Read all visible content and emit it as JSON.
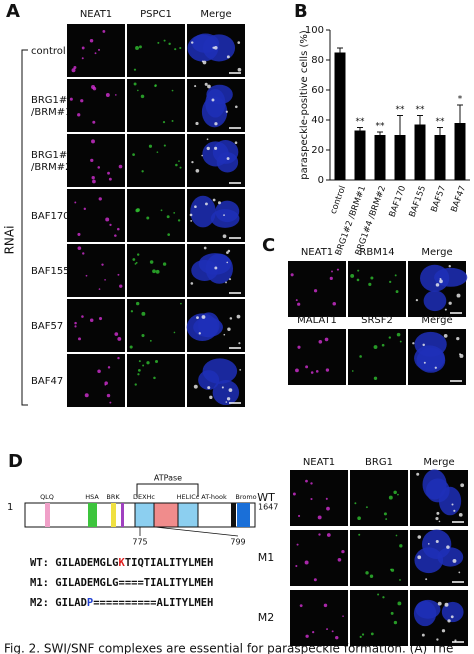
{
  "panel_a": {
    "label": "A",
    "side_label": "RNAi",
    "columns": [
      {
        "text": "NEAT1",
        "color": "#d22fd2"
      },
      {
        "text": "PSPC1",
        "color": "#1f9e1f"
      },
      {
        "text": "Merge",
        "color": "#111111"
      }
    ],
    "rows": [
      [
        "control"
      ],
      [
        "BRG1#2",
        "/BRM#1"
      ],
      [
        "BRG1#4",
        "/BRM#2"
      ],
      [
        "BAF170"
      ],
      [
        "BAF155"
      ],
      [
        "BAF57"
      ],
      [
        "BAF47"
      ]
    ]
  },
  "chart_data": {
    "type": "bar",
    "label": "B",
    "ylabel": "paraspeckle-positive cells (%)",
    "categories": [
      "control",
      "BRG1#2 /BRM#1",
      "BRG1#4 /BRM#2",
      "BAF170",
      "BAF155",
      "BAF57",
      "BAF47"
    ],
    "values": [
      85,
      33,
      30,
      30,
      37,
      30,
      38
    ],
    "errors": [
      3,
      2,
      2,
      13,
      6,
      5,
      12
    ],
    "significance": [
      null,
      "**",
      "**",
      "**",
      "**",
      "**",
      "*"
    ],
    "color": "#000000",
    "ylim": [
      0,
      100
    ],
    "yticks": [
      0,
      20,
      40,
      60,
      80,
      100
    ]
  },
  "panel_c": {
    "label": "C",
    "rows": [
      [
        {
          "text": "NEAT1",
          "color": "#d22fd2"
        },
        {
          "text": "RBM14",
          "color": "#1f9e1f"
        },
        {
          "text": "Merge",
          "color": "#111111"
        }
      ],
      [
        {
          "text": "MALAT1",
          "color": "#1f9e1f"
        },
        {
          "text": "SRSF2",
          "color": "#d22fd2"
        },
        {
          "text": "Merge",
          "color": "#111111"
        }
      ]
    ]
  },
  "panel_d": {
    "label": "D",
    "start": "1",
    "end": "1647",
    "bracket": "ATPase",
    "domains": [
      "QLQ",
      "HSA",
      "BRK",
      "DEXHc",
      "HELICc",
      "AT-hook",
      "Bromo"
    ],
    "range": [
      "775",
      "799"
    ],
    "sequences": [
      [
        {
          "text": "WT: GILADEMGLG",
          "color": "#111111"
        },
        {
          "text": "K",
          "color": "#e02020"
        },
        {
          "text": "TIQTIALITYLMEH",
          "color": "#111111"
        }
      ],
      [
        {
          "text": "M1: GILADEMGLG====TIALITYLMEH",
          "color": "#111111"
        }
      ],
      [
        {
          "text": "M2: GILAD",
          "color": "#111111"
        },
        {
          "text": "P",
          "color": "#2040d0"
        },
        {
          "text": "==========ALITYLMEH",
          "color": "#111111"
        }
      ]
    ],
    "columns": [
      {
        "text": "NEAT1",
        "color": "#d22fd2"
      },
      {
        "text": "BRG1",
        "color": "#1f9e1f"
      },
      {
        "text": "Merge",
        "color": "#111111"
      }
    ],
    "rows": [
      "WT",
      "M1",
      "M2"
    ]
  },
  "caption": "Fig. 2.   SWI/SNF complexes are essential for paraspeckle formation. (A) The"
}
